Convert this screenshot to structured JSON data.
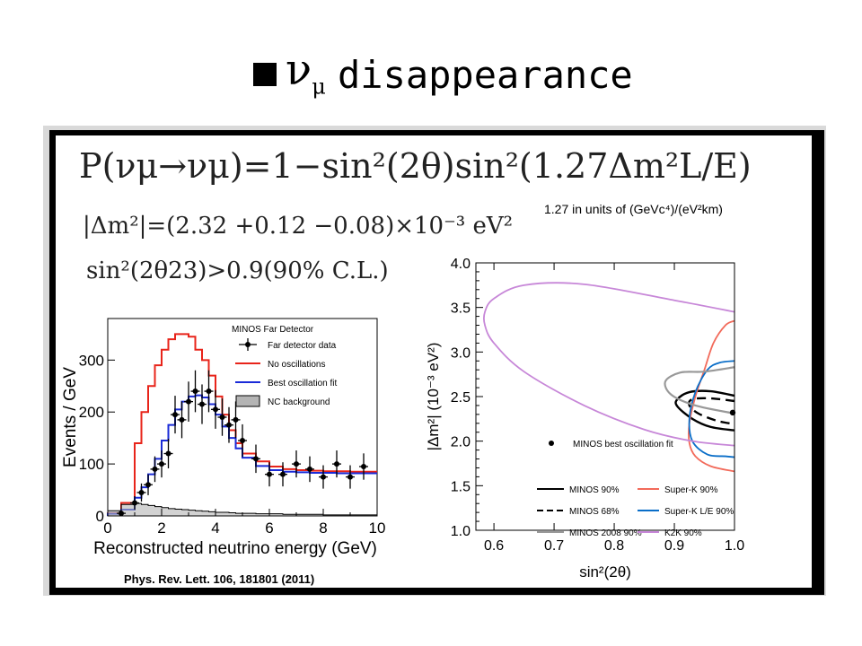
{
  "slide": {
    "title": "disappearance",
    "title_symbol": "ν",
    "title_symbol_sub": "μ"
  },
  "formulas": {
    "probability": "P(νμ→νμ)=1−sin²(2θ)sin²(1.27Δm²L/E)",
    "units_note": "1.27 in units of (GeVc⁴)/(eV²km)",
    "delta_m2": "|Δm²|=(2.32 +0.12 −0.08)×10⁻³ eV²",
    "sin2theta": "sin²(2θ23)>0.9(90% C.L.)"
  },
  "citation": "Phys. Rev. Lett. 106, 181801 (2011)",
  "chart_data": [
    {
      "type": "line",
      "xlabel": "Reconstructed neutrino energy (GeV)",
      "ylabel": "Events / GeV",
      "xlim": [
        0,
        10
      ],
      "ylim": [
        0,
        380
      ],
      "xticks": [
        0,
        2,
        4,
        6,
        8,
        10
      ],
      "yticks": [
        0,
        100,
        200,
        300
      ],
      "legend_title": "MINOS Far Detector",
      "legend_placement": "top-right",
      "bin_edges": [
        0,
        0.5,
        1,
        1.25,
        1.5,
        1.75,
        2,
        2.25,
        2.5,
        2.75,
        3,
        3.25,
        3.5,
        3.75,
        4,
        4.25,
        4.5,
        4.75,
        5,
        5.5,
        6,
        6.5,
        7,
        7.5,
        8,
        8.5,
        9,
        9.5,
        10
      ],
      "series": [
        {
          "name": "No oscillations",
          "color": "#e8241a",
          "values": [
            5,
            25,
            140,
            200,
            250,
            290,
            320,
            340,
            350,
            350,
            345,
            320,
            300,
            270,
            230,
            195,
            165,
            140,
            120,
            105,
            95,
            90,
            88,
            87,
            86,
            86,
            85,
            85
          ]
        },
        {
          "name": "Best oscillation fit",
          "color": "#1a2bd8",
          "values": [
            4,
            12,
            35,
            55,
            80,
            110,
            145,
            175,
            205,
            220,
            230,
            232,
            228,
            215,
            195,
            172,
            150,
            130,
            112,
            96,
            88,
            85,
            84,
            83,
            83,
            82,
            82,
            82
          ]
        },
        {
          "name": "NC background",
          "color": "#b4b4b4",
          "values": [
            10,
            22,
            24,
            22,
            20,
            18,
            16,
            14,
            13,
            12,
            11,
            10,
            9,
            8,
            7,
            7,
            6,
            5,
            5,
            4,
            4,
            3,
            3,
            3,
            2,
            2,
            2,
            2
          ]
        }
      ],
      "data_points": {
        "name": "Far detector data",
        "x": [
          0.5,
          1.0,
          1.25,
          1.5,
          1.75,
          2.0,
          2.25,
          2.5,
          2.75,
          3.0,
          3.25,
          3.5,
          3.75,
          4.0,
          4.25,
          4.5,
          4.75,
          5.0,
          5.5,
          6.0,
          6.5,
          7.0,
          7.5,
          8.0,
          8.5,
          9.0,
          9.5
        ],
        "y": [
          5,
          25,
          45,
          60,
          90,
          100,
          120,
          195,
          185,
          220,
          240,
          215,
          240,
          205,
          190,
          175,
          185,
          145,
          110,
          80,
          80,
          100,
          90,
          75,
          100,
          75,
          95
        ]
      }
    },
    {
      "type": "line",
      "xlabel": "sin²(2θ)",
      "ylabel": "|Δm²| (10⁻³ eV²)",
      "xlim": [
        0.57,
        1.0
      ],
      "ylim": [
        1.0,
        4.0
      ],
      "xticks": [
        0.6,
        0.7,
        0.8,
        0.9,
        1.0
      ],
      "yticks": [
        1.0,
        1.5,
        2.0,
        2.5,
        3.0,
        3.5,
        4.0
      ],
      "legend_placement": "bottom",
      "best_fit": {
        "name": "MINOS best oscillation fit",
        "x": 1.0,
        "y": 2.32
      },
      "series": [
        {
          "name": "MINOS 90%",
          "color": "#000000",
          "style": "solid",
          "x": [
            1.0,
            0.96,
            0.925,
            0.905,
            0.905,
            0.93,
            0.96,
            1.0
          ],
          "y": [
            2.51,
            2.56,
            2.55,
            2.47,
            2.39,
            2.25,
            2.16,
            2.12
          ]
        },
        {
          "name": "MINOS 68%",
          "color": "#000000",
          "style": "dashed",
          "x": [
            1.0,
            0.96,
            0.93,
            0.925,
            0.94,
            0.97,
            1.0
          ],
          "y": [
            2.45,
            2.48,
            2.47,
            2.4,
            2.31,
            2.23,
            2.19
          ]
        },
        {
          "name": "Super-K 90%",
          "color": "#f26a5a",
          "style": "solid",
          "x": [
            1.0,
            0.985,
            0.965,
            0.95,
            0.935,
            0.925,
            0.925,
            0.935,
            0.96,
            1.0
          ],
          "y": [
            3.35,
            3.3,
            3.1,
            2.8,
            2.5,
            2.2,
            1.98,
            1.83,
            1.72,
            1.66
          ]
        },
        {
          "name": "Super-K L/E 90%",
          "color": "#0a6ec8",
          "style": "solid",
          "x": [
            1.0,
            0.975,
            0.955,
            0.935,
            0.925,
            0.93,
            0.955,
            0.985,
            1.0
          ],
          "y": [
            2.9,
            2.88,
            2.8,
            2.55,
            2.25,
            2.0,
            1.85,
            1.83,
            1.82
          ]
        },
        {
          "name": "MINOS 2008 90%",
          "color": "#999999",
          "style": "solid",
          "x": [
            1.0,
            0.95,
            0.91,
            0.885,
            0.895,
            0.935,
            1.0
          ],
          "y": [
            2.83,
            2.78,
            2.77,
            2.67,
            2.52,
            2.4,
            2.31
          ]
        },
        {
          "name": "K2K 90%",
          "color": "#c787d8",
          "style": "solid",
          "x": [
            1.0,
            0.9,
            0.75,
            0.65,
            0.6,
            0.585,
            0.585,
            0.6,
            0.65,
            0.75,
            0.85,
            0.93,
            1.0
          ],
          "y": [
            3.45,
            3.58,
            3.76,
            3.75,
            3.6,
            3.45,
            3.3,
            3.1,
            2.78,
            2.4,
            2.13,
            2.0,
            1.95
          ]
        }
      ]
    }
  ]
}
